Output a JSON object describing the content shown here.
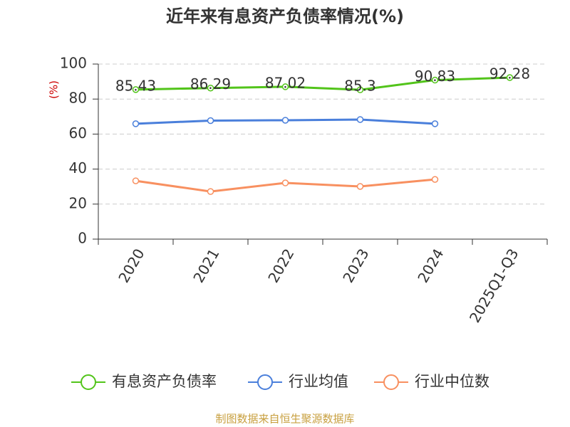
{
  "chart_data": {
    "type": "line",
    "title": "近年来有息资产负债率情况(%)",
    "y_label": "(%)",
    "categories": [
      "2020",
      "2021",
      "2022",
      "2023",
      "2024",
      "2025Q1-Q3"
    ],
    "series": [
      {
        "name": "有息资产负债率",
        "color": "#52c41a",
        "values": [
          85.43,
          86.29,
          87.02,
          85.3,
          90.83,
          92.28
        ],
        "show_labels": true
      },
      {
        "name": "行业均值",
        "color": "#4a7fdb",
        "values": [
          65.9,
          67.7,
          67.9,
          68.3,
          65.9,
          null
        ]
      },
      {
        "name": "行业中位数",
        "color": "#f89060",
        "values": [
          33.3,
          27.2,
          32.1,
          30.1,
          34.1,
          null
        ]
      }
    ],
    "ylim": [
      0,
      100
    ],
    "yticks": [
      0,
      20,
      40,
      60,
      80,
      100
    ],
    "grid": true,
    "legend": "bottom",
    "source": "制图数据来自恒生聚源数据库"
  }
}
